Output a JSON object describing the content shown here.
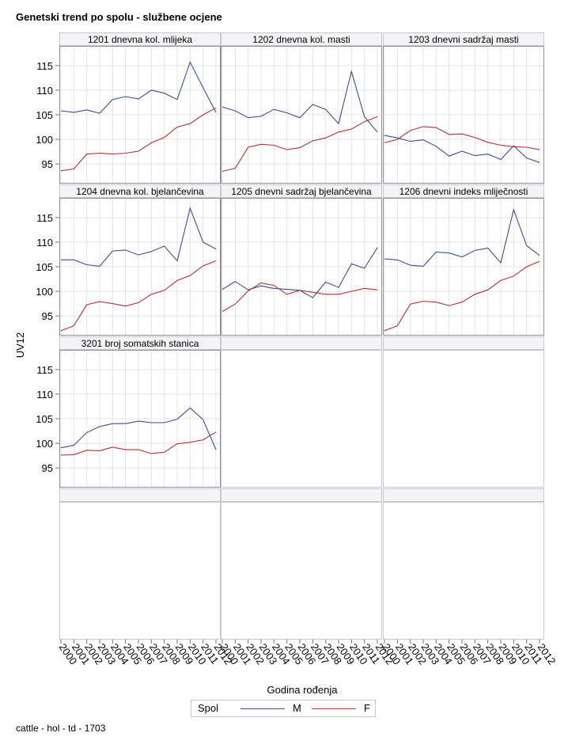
{
  "title": "Genetski trend po spolu - službene ocjene",
  "footer": "cattle - hol - td - 1703",
  "colors": {
    "M": "#3c5088",
    "F": "#b03232"
  },
  "chart_data": {
    "type": "line",
    "title": "Genetski trend po spolu - službene ocjene",
    "xlabel": "Godina rođenja",
    "ylabel": "UV12",
    "x": [
      2000,
      2001,
      2002,
      2003,
      2004,
      2005,
      2006,
      2007,
      2008,
      2009,
      2010,
      2011,
      2012
    ],
    "x_tick_labels": [
      "2000",
      "2001",
      "2002",
      "2003",
      "2004",
      "2005",
      "2006",
      "2007",
      "2008",
      "2009",
      "2010",
      "2011",
      "2012"
    ],
    "ylim": [
      91,
      119
    ],
    "y_ticks": [
      95,
      100,
      105,
      110,
      115
    ],
    "grid": true,
    "legend": {
      "title": "Spol",
      "entries": [
        "M",
        "F"
      ],
      "position": "bottom-center"
    },
    "panels": [
      {
        "label": "1201 dnevna kol. mlijeka",
        "series": [
          {
            "name": "M",
            "values": [
              105.8,
              105.5,
              106.0,
              105.3,
              108.1,
              108.7,
              108.2,
              110.0,
              109.4,
              108.1,
              115.7,
              110.5,
              105.5
            ]
          },
          {
            "name": "F",
            "values": [
              93.6,
              94.0,
              97.0,
              97.2,
              97.0,
              97.2,
              97.6,
              99.3,
              100.4,
              102.5,
              103.2,
              105.0,
              106.4
            ]
          }
        ]
      },
      {
        "label": "1202 dnevna kol. masti",
        "series": [
          {
            "name": "M",
            "values": [
              106.6,
              105.8,
              104.4,
              104.7,
              106.1,
              105.4,
              104.4,
              107.1,
              106.1,
              103.2,
              113.8,
              104.6,
              101.5
            ]
          },
          {
            "name": "F",
            "values": [
              93.5,
              94.1,
              98.4,
              99.0,
              98.8,
              97.9,
              98.3,
              99.7,
              100.3,
              101.5,
              102.1,
              103.6,
              104.6
            ]
          }
        ]
      },
      {
        "label": "1203 dnevni sadržaj masti",
        "series": [
          {
            "name": "M",
            "values": [
              100.8,
              100.3,
              99.6,
              99.9,
              98.6,
              96.6,
              97.6,
              96.7,
              97.0,
              95.9,
              98.7,
              96.2,
              95.3
            ]
          },
          {
            "name": "F",
            "values": [
              99.3,
              100.0,
              101.8,
              102.6,
              102.4,
              101.0,
              101.1,
              100.4,
              99.4,
              98.8,
              98.5,
              98.4,
              97.9
            ]
          }
        ]
      },
      {
        "label": "1204 dnevna kol. bjelančevina",
        "series": [
          {
            "name": "M",
            "values": [
              106.4,
              106.4,
              105.4,
              105.1,
              108.2,
              108.4,
              107.4,
              108.1,
              109.2,
              106.2,
              116.9,
              110.0,
              108.6
            ]
          },
          {
            "name": "F",
            "values": [
              92.0,
              93.0,
              97.3,
              97.9,
              97.5,
              97.0,
              97.7,
              99.4,
              100.2,
              102.2,
              103.2,
              105.2,
              106.2
            ]
          }
        ]
      },
      {
        "label": "1205 dnevni sadržaj bjelančevina",
        "series": [
          {
            "name": "M",
            "values": [
              100.4,
              102.0,
              100.3,
              101.1,
              100.6,
              100.4,
              100.2,
              98.7,
              101.9,
              100.8,
              105.6,
              104.7,
              108.9
            ]
          },
          {
            "name": "F",
            "values": [
              95.9,
              97.4,
              100.1,
              101.7,
              101.2,
              99.4,
              100.2,
              99.8,
              99.4,
              99.4,
              100.0,
              100.6,
              100.3
            ]
          }
        ]
      },
      {
        "label": "1206 dnevni indeks mliječnosti",
        "series": [
          {
            "name": "M",
            "values": [
              106.6,
              106.4,
              105.3,
              105.1,
              108.0,
              107.8,
              107.0,
              108.3,
              108.8,
              105.8,
              116.6,
              109.3,
              107.3
            ]
          },
          {
            "name": "F",
            "values": [
              92.0,
              93.0,
              97.4,
              98.0,
              97.8,
              97.1,
              97.8,
              99.4,
              100.3,
              102.2,
              103.1,
              105.0,
              106.1
            ]
          }
        ]
      },
      {
        "label": "3201 broj somatskih stanica",
        "series": [
          {
            "name": "M",
            "values": [
              99.1,
              99.6,
              102.2,
              103.4,
              104.0,
              104.0,
              104.5,
              104.2,
              104.2,
              104.9,
              107.2,
              104.8,
              98.7
            ]
          },
          {
            "name": "F",
            "values": [
              97.6,
              97.7,
              98.6,
              98.5,
              99.2,
              98.7,
              98.7,
              97.9,
              98.2,
              99.9,
              100.2,
              100.7,
              102.3
            ]
          }
        ]
      }
    ]
  }
}
